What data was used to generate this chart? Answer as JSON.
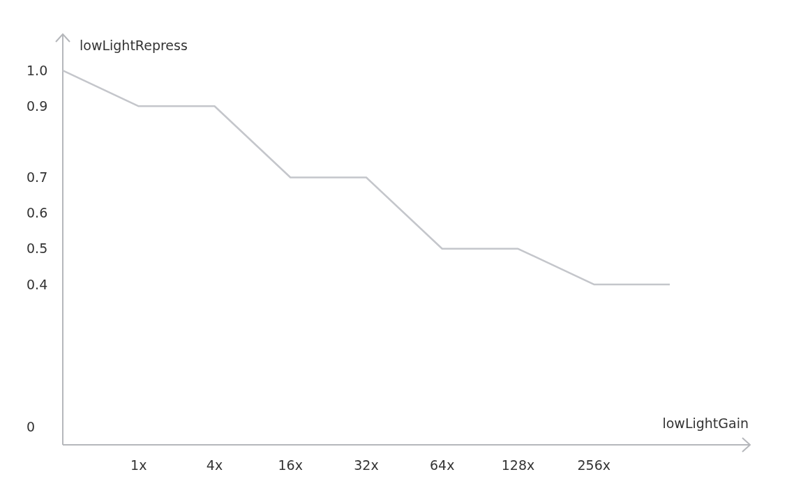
{
  "chart_data": {
    "type": "line",
    "xlabel": "lowLightGain",
    "ylabel": "lowLightRepress",
    "categories": [
      null,
      "1x",
      "4x",
      "16x",
      "32x",
      "64x",
      "128x",
      "256x",
      null
    ],
    "series": [
      {
        "color": "#c4c6cb",
        "values": [
          1.0,
          0.9,
          0.9,
          0.7,
          0.7,
          0.5,
          0.5,
          0.4,
          0.4
        ]
      }
    ],
    "ylim": [
      -0.05,
      1.1
    ],
    "yticks": [
      0,
      0.4,
      0.5,
      0.6,
      0.7,
      0.9,
      {
        "value": 1.0,
        "label": "1.0"
      }
    ],
    "grid": false,
    "marker": "none",
    "line_style": "solid"
  }
}
